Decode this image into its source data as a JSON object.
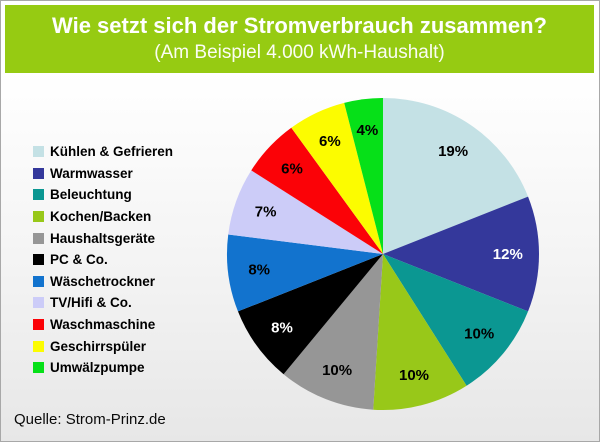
{
  "header": {
    "title": "Wie setzt sich der Stromverbrauch zusammen?",
    "subtitle": "(Am Beispiel 4.000 kWh-Haushalt)",
    "background_color": "#96CB12",
    "text_color": "#FFFFFF"
  },
  "chart_data": {
    "type": "pie",
    "title": "Wie setzt sich der Stromverbrauch zusammen? (Am Beispiel 4.000 kWh-Haushalt)",
    "unit": "%",
    "start_angle_deg": 0,
    "direction": "clockwise",
    "legend_position": "left",
    "slices": [
      {
        "label": "Kühlen & Gefrieren",
        "value": 19,
        "label_text": "19%",
        "color": "#C4E1E5",
        "label_color": "#000000"
      },
      {
        "label": "Warmwasser",
        "value": 12,
        "label_text": "12%",
        "color": "#34389B",
        "label_color": "#FFFFFF"
      },
      {
        "label": "Beleuchtung",
        "value": 10,
        "label_text": "10%",
        "color": "#0B9792",
        "label_color": "#000000"
      },
      {
        "label": "Kochen/Backen",
        "value": 10,
        "label_text": "10%",
        "color": "#98C819",
        "label_color": "#000000"
      },
      {
        "label": "Haushaltsgeräte",
        "value": 10,
        "label_text": "10%",
        "color": "#969696",
        "label_color": "#000000"
      },
      {
        "label": "PC & Co.",
        "value": 8,
        "label_text": "8%",
        "color": "#000000",
        "label_color": "#FFFFFF"
      },
      {
        "label": "Wäschetrockner",
        "value": 8,
        "label_text": "8%",
        "color": "#1273CE",
        "label_color": "#000000"
      },
      {
        "label": "TV/Hifi & Co.",
        "value": 7,
        "label_text": "7%",
        "color": "#CCCCF8",
        "label_color": "#000000"
      },
      {
        "label": "Waschmaschine",
        "value": 6,
        "label_text": "6%",
        "color": "#FB0207",
        "label_color": "#000000"
      },
      {
        "label": "Geschirrspüler",
        "value": 6,
        "label_text": "6%",
        "color": "#FCFC00",
        "label_color": "#000000"
      },
      {
        "label": "Umwälzpumpe",
        "value": 4,
        "label_text": "4%",
        "color": "#06E018",
        "label_color": "#000000"
      }
    ]
  },
  "source": {
    "text": "Quelle: Strom-Prinz.de"
  }
}
